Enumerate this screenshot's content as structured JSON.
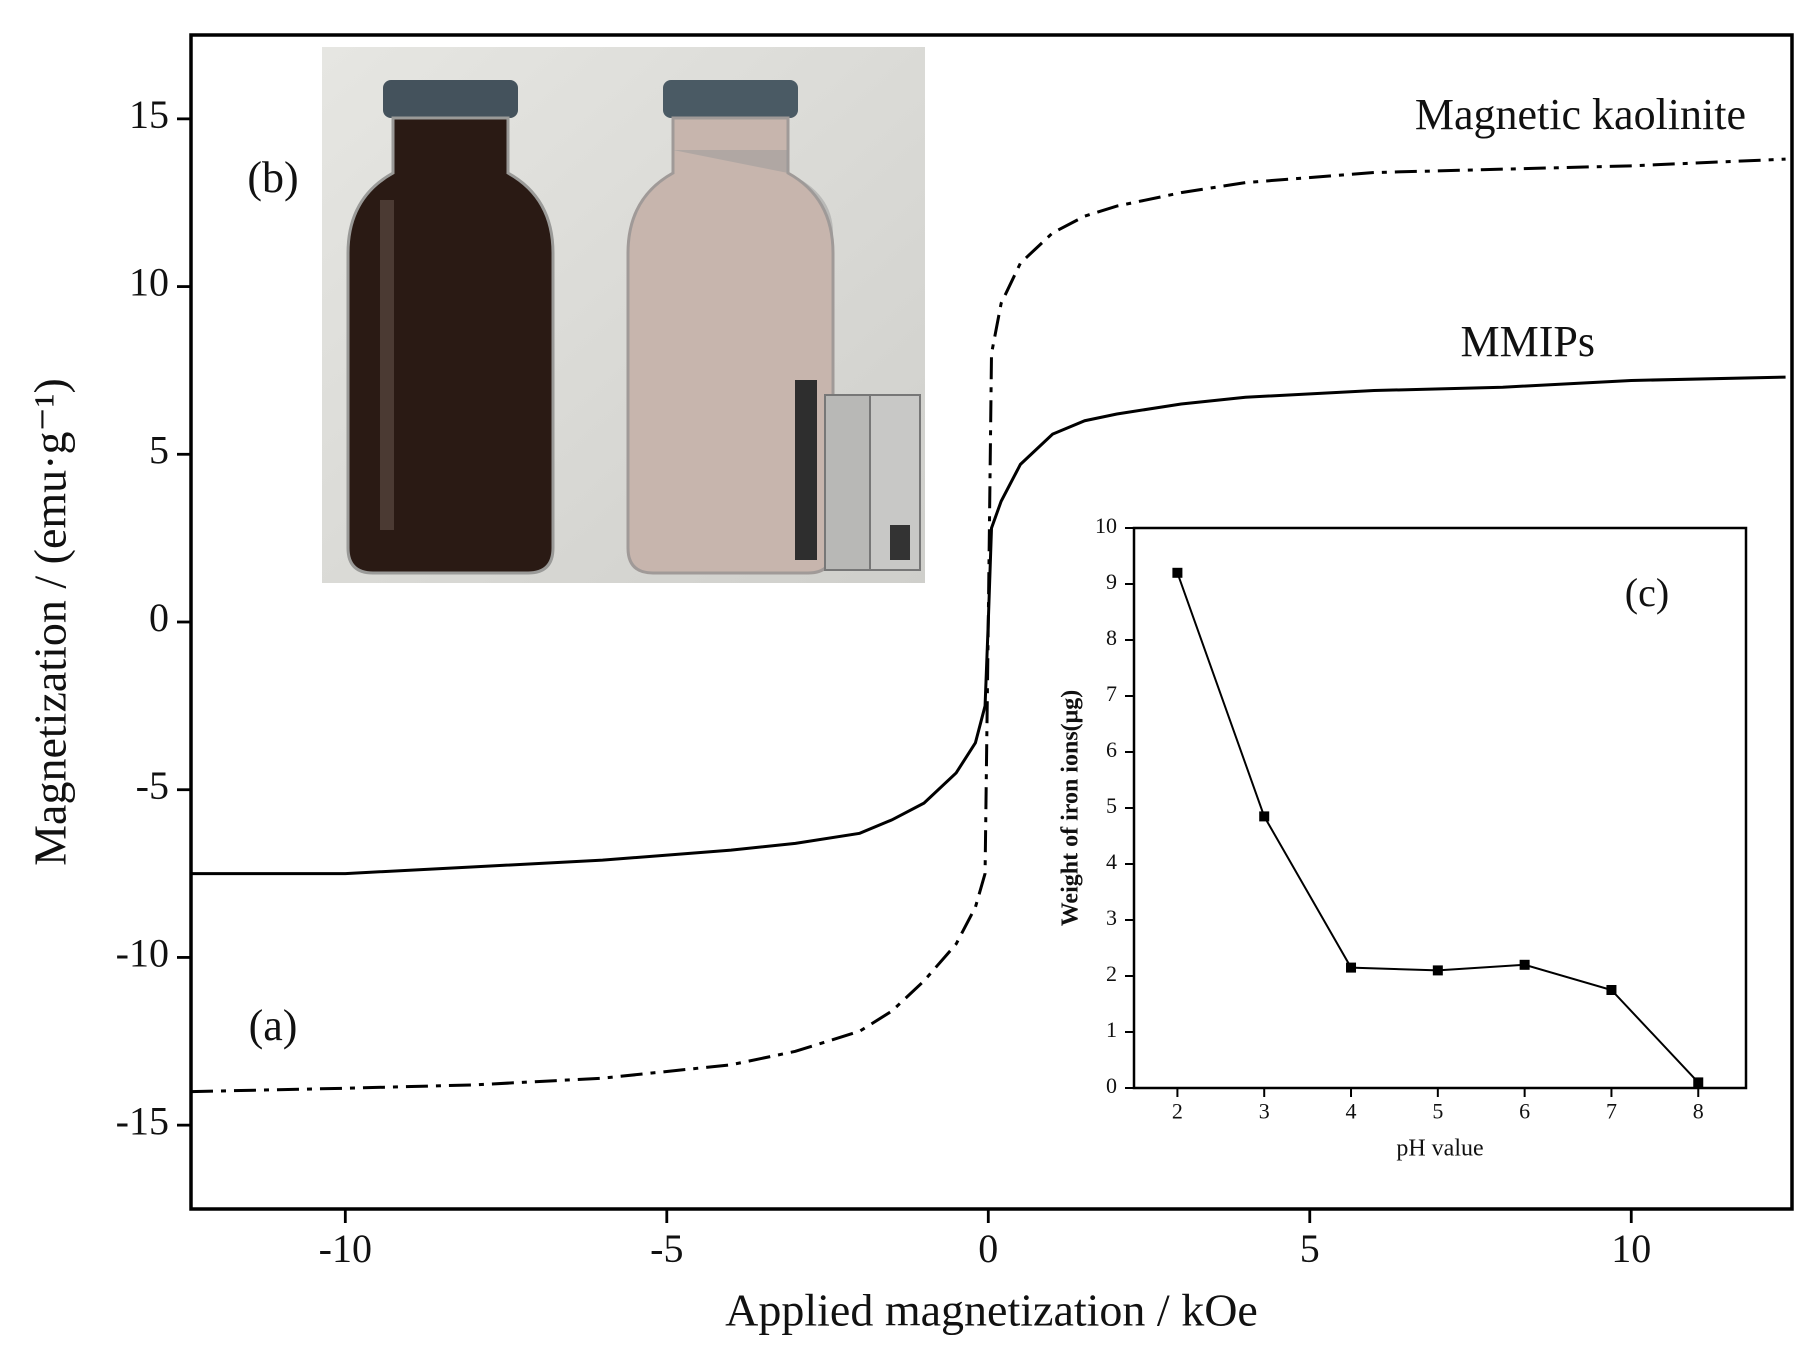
{
  "chart_data": [
    {
      "type": "line",
      "xlabel": "Applied magnetization / kOe",
      "ylabel": "Magnetization / (emu·g⁻¹)",
      "annotations": [
        "(a)",
        "(b)"
      ],
      "x": [
        -12.4,
        -10,
        -8,
        -6,
        -4,
        -3,
        -2,
        -1.5,
        -1,
        -0.5,
        -0.2,
        -0.05,
        0,
        0.05,
        0.2,
        0.5,
        1,
        1.5,
        2,
        3,
        4,
        6,
        8,
        10,
        12.4
      ],
      "series": [
        {
          "name": "MMIPs",
          "color": "#000000",
          "dash": "solid",
          "values": [
            -7.5,
            -7.5,
            -7.3,
            -7.1,
            -6.8,
            -6.6,
            -6.3,
            -5.9,
            -5.4,
            -4.5,
            -3.6,
            -2.5,
            0,
            2.8,
            3.6,
            4.7,
            5.6,
            6.0,
            6.2,
            6.5,
            6.7,
            6.9,
            7.0,
            7.2,
            7.3
          ]
        },
        {
          "name": "Magnetic kaolinite",
          "color": "#000000",
          "dash": "dash-dot",
          "values": [
            -14.0,
            -13.9,
            -13.8,
            -13.6,
            -13.2,
            -12.8,
            -12.2,
            -11.6,
            -10.7,
            -9.6,
            -8.5,
            -7.5,
            0,
            8.0,
            9.5,
            10.7,
            11.6,
            12.1,
            12.4,
            12.8,
            13.1,
            13.4,
            13.5,
            13.6,
            13.8
          ]
        }
      ],
      "xlim": [
        -12.4,
        12.5
      ],
      "xticks": [
        -10,
        -5,
        0,
        5,
        10
      ],
      "ylim": [
        -17.5,
        17.5
      ],
      "yticks": [
        -15,
        -10,
        -5,
        0,
        5,
        10,
        15
      ]
    },
    {
      "type": "line",
      "xlabel": "pH value",
      "ylabel": "Weight of iron ions(μg)",
      "annotations": [
        "(c)"
      ],
      "x": [
        2,
        3,
        4,
        5,
        6,
        7,
        8
      ],
      "series": [
        {
          "color": "#000000",
          "dash": "solid",
          "marker": "square",
          "values": [
            9.2,
            4.85,
            2.15,
            2.1,
            2.2,
            1.75,
            0.1
          ]
        }
      ],
      "xlim": [
        1.5,
        8.55
      ],
      "xticks": [
        2,
        3,
        4,
        5,
        6,
        7,
        8
      ],
      "ylim": [
        0,
        10
      ],
      "yticks": [
        0,
        1,
        2,
        3,
        4,
        5,
        6,
        7,
        8,
        9,
        10
      ]
    }
  ]
}
